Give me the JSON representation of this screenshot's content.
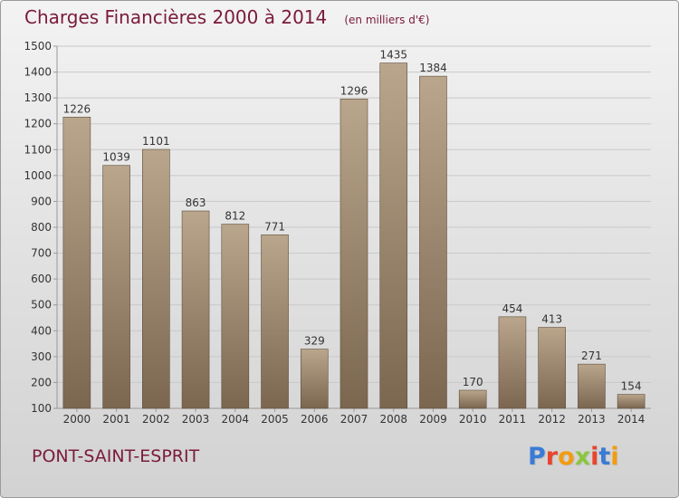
{
  "header": {
    "title": "Charges Financières 2000 à 2014",
    "unit": "(en milliers d'€)"
  },
  "place_name": "PONT-SAINT-ESPRIT",
  "logo": {
    "text": "Proxiti",
    "letter_colors": [
      "#3a7bd5",
      "#e8442e",
      "#f39c12",
      "#8cc63f",
      "#e8442e",
      "#3a7bd5",
      "#f39c12"
    ]
  },
  "colors": {
    "bar_light": "#b9a68c",
    "bar_dark": "#7b6650",
    "bar_outline": "#5f4d3b",
    "grid": "#c9c9c9",
    "axis": "#999999",
    "text": "#333333",
    "title": "#7a1a3c"
  },
  "chart_data": {
    "type": "bar",
    "title": "Charges Financières 2000 à 2014",
    "subtitle": "(en milliers d'€)",
    "categories": [
      "2000",
      "2001",
      "2002",
      "2003",
      "2004",
      "2005",
      "2006",
      "2007",
      "2008",
      "2009",
      "2010",
      "2011",
      "2012",
      "2013",
      "2014"
    ],
    "values": [
      1226,
      1039,
      1101,
      863,
      812,
      771,
      329,
      1296,
      1435,
      1384,
      170,
      454,
      413,
      271,
      154
    ],
    "ylim": [
      100,
      1500
    ],
    "yticks": [
      100,
      200,
      300,
      400,
      500,
      600,
      700,
      800,
      900,
      1000,
      1100,
      1200,
      1300,
      1400,
      1500
    ],
    "grid": true,
    "legend": "none"
  }
}
